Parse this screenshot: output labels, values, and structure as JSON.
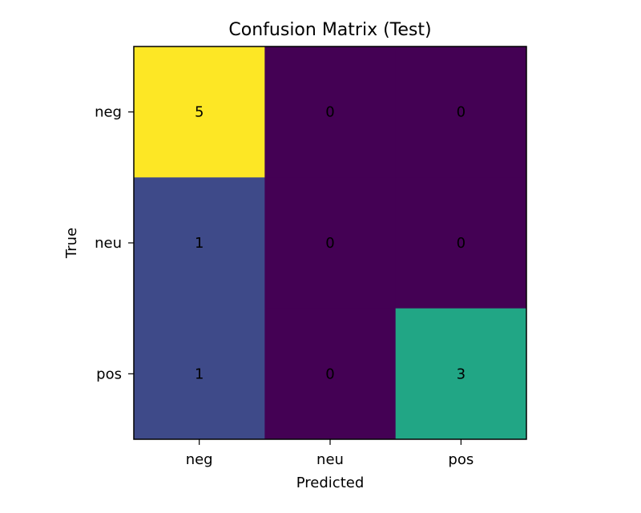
{
  "chart_data": {
    "type": "heatmap",
    "title": "Confusion Matrix (Test)",
    "xlabel": "Predicted",
    "ylabel": "True",
    "x_categories": [
      "neg",
      "neu",
      "pos"
    ],
    "y_categories": [
      "neg",
      "neu",
      "pos"
    ],
    "matrix": [
      [
        5,
        0,
        0
      ],
      [
        1,
        0,
        0
      ],
      [
        1,
        0,
        3
      ]
    ],
    "value_range": [
      0,
      5
    ],
    "colormap": "viridis",
    "colors": {
      "0": "#440154",
      "1": "#3e4a89",
      "3": "#21a685",
      "5": "#fde725"
    },
    "grid": false,
    "colorbar": false
  }
}
